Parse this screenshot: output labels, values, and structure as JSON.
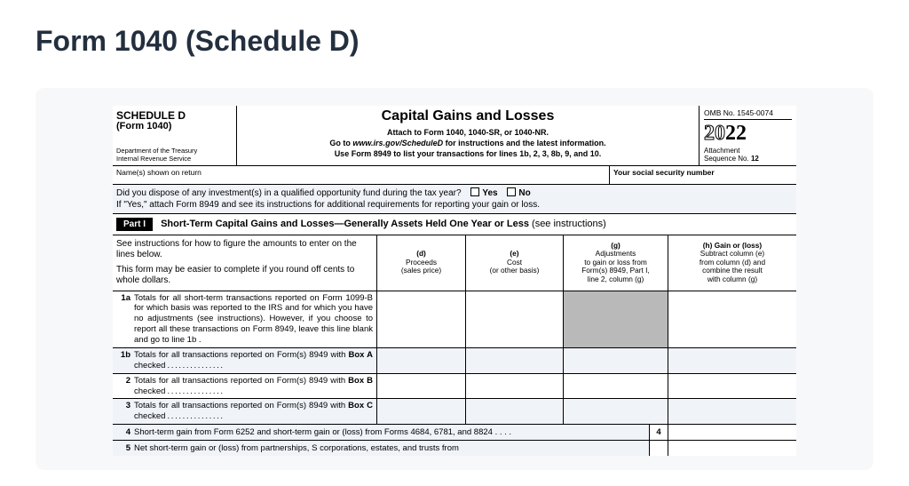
{
  "page": {
    "title": "Form 1040 (Schedule D)"
  },
  "header": {
    "schedule": "SCHEDULE D",
    "form": "(Form 1040)",
    "dept1": "Department of the Treasury",
    "dept2": "Internal Revenue Service",
    "main_title": "Capital Gains and Losses",
    "sub1": "Attach to Form 1040, 1040-SR, or 1040-NR.",
    "sub2a": "Go to ",
    "sub2b": "www.irs.gov/ScheduleD",
    "sub2c": " for instructions and the latest information.",
    "sub3": "Use Form 8949 to list your transactions for lines 1b, 2, 3, 8b, 9, and 10.",
    "omb": "OMB No. 1545-0074",
    "year_outline": "20",
    "year_solid": "22",
    "attach1": "Attachment",
    "attach2": "Sequence No. ",
    "attach_num": "12"
  },
  "namerow": {
    "left": "Name(s) shown on return",
    "right": "Your social security number"
  },
  "qof": {
    "line1a": "Did you dispose of any investment(s) in a qualified opportunity fund during the tax year?",
    "yes": "Yes",
    "no": "No",
    "line2": "If \"Yes,\" attach Form 8949 and see its instructions for additional requirements for reporting your gain or loss."
  },
  "part": {
    "badge": "Part I",
    "title": "Short-Term Capital Gains and Losses—Generally Assets Held One Year or Less ",
    "note": "(see instructions)"
  },
  "inst": {
    "p1": "See instructions for how to figure the amounts to enter on the lines below.",
    "p2": "This form may be easier to complete if you round off cents to whole dollars."
  },
  "cols": {
    "d1": "(d)",
    "d2": "Proceeds",
    "d3": "(sales price)",
    "e1": "(e)",
    "e2": "Cost",
    "e3": "(or other basis)",
    "g1": "(g)",
    "g2": "Adjustments",
    "g3": "to gain or loss from",
    "g4": "Form(s) 8949, Part I,",
    "g5": "line 2, column (g)",
    "h1": "(h) Gain or (loss)",
    "h2": "Subtract column (e)",
    "h3": "from column (d) and",
    "h4": "combine the result",
    "h5": "with column (g)"
  },
  "rows": {
    "r1a_num": "1a",
    "r1a_txt": "Totals for all short-term transactions reported on Form 1099-B for which basis was reported to the IRS and for which you have no adjustments (see instructions). However, if you choose to report all these transactions on Form 8949, leave this line blank and go to line 1b   .",
    "r1b_num": "1b",
    "r1b_txt": "Totals for all transactions reported on Form(s) 8949 with ",
    "r1b_bold": "Box A",
    "r1b_after": " checked",
    "r2_num": "2",
    "r2_txt": "Totals for all transactions reported on Form(s) 8949 with ",
    "r2_bold": "Box B",
    "r2_after": " checked",
    "r3_num": "3",
    "r3_txt": "Totals for all transactions reported on Form(s) 8949 with ",
    "r3_bold": "Box C",
    "r3_after": " checked",
    "r4_num": "4",
    "r4_txt": "Short-term gain from Form 6252 and short-term gain or (loss) from Forms 4684, 6781, and 8824",
    "r4_box": "4",
    "r5_num": "5",
    "r5_txt": "Net  short-term  gain  or  (loss)  from  partnerships,  S  corporations,  estates,  and  trusts  from"
  }
}
